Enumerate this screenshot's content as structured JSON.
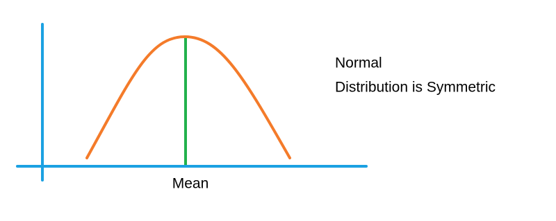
{
  "caption": {
    "line1": "Normal",
    "line2": "Distribution is Symmetric"
  },
  "axis_label": "Mean"
}
